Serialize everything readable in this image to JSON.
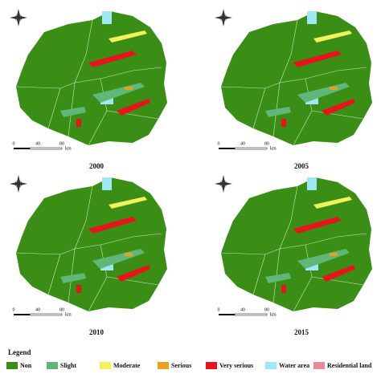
{
  "panels": [
    {
      "year": "2000",
      "scale": {
        "ticks": [
          "0",
          "40",
          "80"
        ],
        "unit": "km"
      }
    },
    {
      "year": "2005",
      "scale": {
        "ticks": [
          "0",
          "40",
          "80"
        ],
        "unit": "km"
      }
    },
    {
      "year": "2010",
      "scale": {
        "ticks": [
          "0",
          "40",
          "80"
        ],
        "unit": "km"
      }
    },
    {
      "year": "2015",
      "scale": {
        "ticks": [
          "0",
          "40",
          "80"
        ],
        "unit": "km"
      }
    }
  ],
  "legend": {
    "title": "Legend",
    "items": [
      "Non",
      "Slight",
      "Moderate",
      "Serious",
      "Very serious",
      "Water area",
      "Residential land"
    ]
  }
}
